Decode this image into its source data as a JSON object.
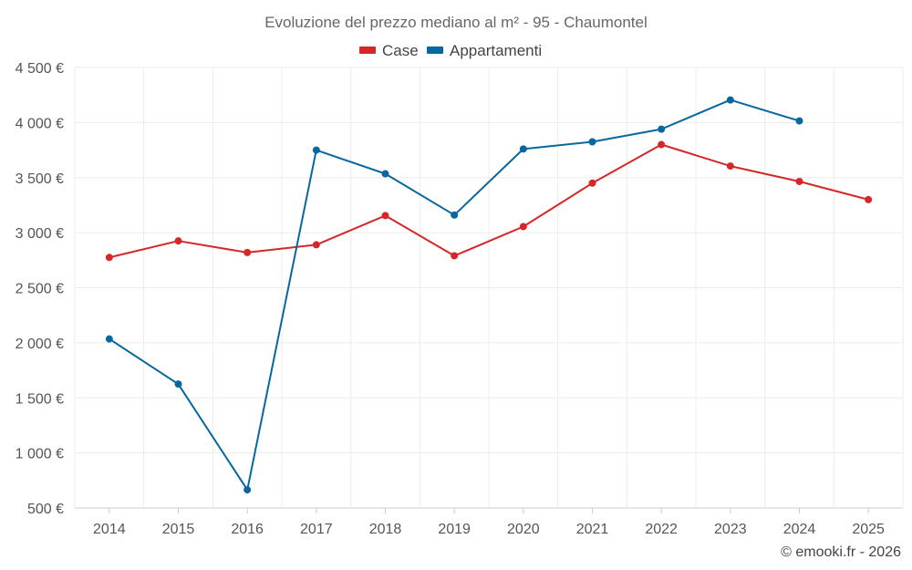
{
  "chart_data": {
    "type": "line",
    "title": "Evoluzione del prezzo mediano al m² - 95 - Chaumontel",
    "categories": [
      "2014",
      "2015",
      "2016",
      "2017",
      "2018",
      "2019",
      "2020",
      "2021",
      "2022",
      "2023",
      "2024",
      "2025"
    ],
    "series": [
      {
        "name": "Case",
        "color": "#d62728",
        "values": [
          2775,
          2925,
          2820,
          2890,
          3155,
          2790,
          3055,
          3450,
          3800,
          3605,
          3465,
          3300
        ]
      },
      {
        "name": "Appartamenti",
        "color": "#08679e",
        "values": [
          2035,
          1625,
          665,
          3750,
          3535,
          3160,
          3760,
          3825,
          3940,
          4205,
          4015,
          null
        ]
      }
    ],
    "ylim": [
      500,
      4500
    ],
    "yticks": [
      {
        "value": 4500,
        "label": "4 500 €"
      },
      {
        "value": 4000,
        "label": "4 000 €"
      },
      {
        "value": 3500,
        "label": "3 500 €"
      },
      {
        "value": 3000,
        "label": "3 000 €"
      },
      {
        "value": 2500,
        "label": "2 500 €"
      },
      {
        "value": 2000,
        "label": "2 000 €"
      },
      {
        "value": 1500,
        "label": "1 500 €"
      },
      {
        "value": 1000,
        "label": "1 000 €"
      },
      {
        "value": 500,
        "label": "500 €"
      }
    ],
    "grid": true,
    "legend_position": "top-center",
    "xlabel": "",
    "ylabel": ""
  },
  "credit": "© emooki.fr - 2026"
}
